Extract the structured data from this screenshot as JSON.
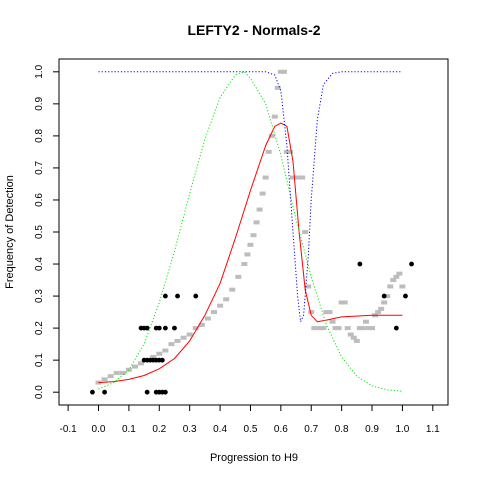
{
  "chart_data": {
    "type": "scatter",
    "title": "LEFTY2 - Normals-2",
    "xlabel": "Progression to H9",
    "ylabel": "Frequency of Detection",
    "xlim": [
      -0.13,
      1.15
    ],
    "ylim": [
      -0.04,
      1.04
    ],
    "xticks": [
      "-0.1",
      "0.0",
      "0.1",
      "0.2",
      "0.3",
      "0.4",
      "0.5",
      "0.6",
      "0.7",
      "0.8",
      "0.9",
      "1.0",
      "1.1"
    ],
    "yticks": [
      "0.0",
      "0.1",
      "0.2",
      "0.3",
      "0.4",
      "0.5",
      "0.6",
      "0.7",
      "0.8",
      "0.9",
      "1.0"
    ],
    "grid": false,
    "legend": "none",
    "colors": {
      "black_points": "#000000",
      "gray_points": "#bdbdbd",
      "red_curve": "#ff0000",
      "green_curve": "#00ee00",
      "blue_curve": "#0000ff"
    },
    "series": [
      {
        "kind": "points",
        "color": "#000000",
        "points": [
          [
            -0.02,
            0.0
          ],
          [
            0.02,
            0.0
          ],
          [
            0.14,
            0.2
          ],
          [
            0.15,
            0.2
          ],
          [
            0.16,
            0.2
          ],
          [
            0.15,
            0.1
          ],
          [
            0.16,
            0.1
          ],
          [
            0.17,
            0.1
          ],
          [
            0.18,
            0.1
          ],
          [
            0.19,
            0.1
          ],
          [
            0.2,
            0.1
          ],
          [
            0.21,
            0.1
          ],
          [
            0.16,
            0.0
          ],
          [
            0.19,
            0.0
          ],
          [
            0.2,
            0.0
          ],
          [
            0.21,
            0.0
          ],
          [
            0.22,
            0.0
          ],
          [
            0.19,
            0.2
          ],
          [
            0.2,
            0.2
          ],
          [
            0.22,
            0.2
          ],
          [
            0.25,
            0.2
          ],
          [
            0.22,
            0.3
          ],
          [
            0.26,
            0.3
          ],
          [
            0.32,
            0.3
          ],
          [
            0.86,
            0.4
          ],
          [
            0.94,
            0.3
          ],
          [
            0.98,
            0.2
          ],
          [
            1.01,
            0.3
          ],
          [
            1.03,
            0.4
          ]
        ]
      },
      {
        "kind": "points",
        "color": "#bdbdbd",
        "points": [
          [
            0.0,
            0.03
          ],
          [
            0.02,
            0.04
          ],
          [
            0.04,
            0.05
          ],
          [
            0.06,
            0.06
          ],
          [
            0.08,
            0.06
          ],
          [
            0.1,
            0.07
          ],
          [
            0.12,
            0.08
          ],
          [
            0.14,
            0.09
          ],
          [
            0.16,
            0.1
          ],
          [
            0.18,
            0.11
          ],
          [
            0.2,
            0.12
          ],
          [
            0.22,
            0.13
          ],
          [
            0.24,
            0.15
          ],
          [
            0.26,
            0.16
          ],
          [
            0.28,
            0.17
          ],
          [
            0.3,
            0.18
          ],
          [
            0.32,
            0.2
          ],
          [
            0.34,
            0.21
          ],
          [
            0.36,
            0.23
          ],
          [
            0.38,
            0.25
          ],
          [
            0.4,
            0.27
          ],
          [
            0.42,
            0.29
          ],
          [
            0.44,
            0.32
          ],
          [
            0.46,
            0.36
          ],
          [
            0.48,
            0.4
          ],
          [
            0.49,
            0.43
          ],
          [
            0.5,
            0.46
          ],
          [
            0.51,
            0.49
          ],
          [
            0.52,
            0.53
          ],
          [
            0.53,
            0.57
          ],
          [
            0.54,
            0.62
          ],
          [
            0.55,
            0.67
          ],
          [
            0.56,
            0.75
          ],
          [
            0.57,
            0.8
          ],
          [
            0.58,
            0.86
          ],
          [
            0.59,
            0.95
          ],
          [
            0.6,
            1.0
          ],
          [
            0.61,
            1.0
          ],
          [
            0.62,
            0.75
          ],
          [
            0.63,
            0.75
          ],
          [
            0.64,
            0.67
          ],
          [
            0.65,
            0.67
          ],
          [
            0.66,
            0.67
          ],
          [
            0.67,
            0.67
          ],
          [
            0.68,
            0.5
          ],
          [
            0.69,
            0.33
          ],
          [
            0.7,
            0.25
          ],
          [
            0.71,
            0.2
          ],
          [
            0.72,
            0.2
          ],
          [
            0.73,
            0.2
          ],
          [
            0.74,
            0.2
          ],
          [
            0.75,
            0.25
          ],
          [
            0.76,
            0.25
          ],
          [
            0.77,
            0.22
          ],
          [
            0.78,
            0.2
          ],
          [
            0.79,
            0.2
          ],
          [
            0.8,
            0.28
          ],
          [
            0.81,
            0.28
          ],
          [
            0.82,
            0.2
          ],
          [
            0.83,
            0.18
          ],
          [
            0.84,
            0.17
          ],
          [
            0.85,
            0.16
          ],
          [
            0.86,
            0.2
          ],
          [
            0.87,
            0.2
          ],
          [
            0.88,
            0.22
          ],
          [
            0.89,
            0.2
          ],
          [
            0.9,
            0.2
          ],
          [
            0.91,
            0.24
          ],
          [
            0.92,
            0.25
          ],
          [
            0.93,
            0.26
          ],
          [
            0.94,
            0.28
          ],
          [
            0.95,
            0.3
          ],
          [
            0.96,
            0.33
          ],
          [
            0.97,
            0.35
          ],
          [
            0.98,
            0.36
          ],
          [
            0.99,
            0.37
          ],
          [
            1.0,
            0.33
          ]
        ]
      },
      {
        "kind": "line",
        "color": "#ff0000",
        "dash": "solid",
        "points": [
          [
            0.0,
            0.03
          ],
          [
            0.05,
            0.033
          ],
          [
            0.1,
            0.04
          ],
          [
            0.15,
            0.052
          ],
          [
            0.2,
            0.073
          ],
          [
            0.25,
            0.105
          ],
          [
            0.3,
            0.16
          ],
          [
            0.35,
            0.24
          ],
          [
            0.4,
            0.34
          ],
          [
            0.45,
            0.48
          ],
          [
            0.5,
            0.63
          ],
          [
            0.55,
            0.77
          ],
          [
            0.58,
            0.83
          ],
          [
            0.6,
            0.84
          ],
          [
            0.62,
            0.83
          ],
          [
            0.64,
            0.72
          ],
          [
            0.66,
            0.5
          ],
          [
            0.68,
            0.32
          ],
          [
            0.7,
            0.24
          ],
          [
            0.72,
            0.22
          ],
          [
            0.75,
            0.225
          ],
          [
            0.8,
            0.235
          ],
          [
            0.9,
            0.24
          ],
          [
            1.0,
            0.24
          ]
        ]
      },
      {
        "kind": "line",
        "color": "#00ee00",
        "dash": "dotted",
        "points": [
          [
            0.0,
            0.01
          ],
          [
            0.05,
            0.03
          ],
          [
            0.1,
            0.07
          ],
          [
            0.15,
            0.15
          ],
          [
            0.2,
            0.28
          ],
          [
            0.25,
            0.44
          ],
          [
            0.3,
            0.62
          ],
          [
            0.35,
            0.79
          ],
          [
            0.4,
            0.92
          ],
          [
            0.45,
            0.99
          ],
          [
            0.48,
            1.0
          ],
          [
            0.5,
            0.98
          ],
          [
            0.55,
            0.9
          ],
          [
            0.6,
            0.74
          ],
          [
            0.65,
            0.54
          ],
          [
            0.7,
            0.36
          ],
          [
            0.75,
            0.21
          ],
          [
            0.8,
            0.11
          ],
          [
            0.85,
            0.05
          ],
          [
            0.9,
            0.02
          ],
          [
            0.95,
            0.007
          ],
          [
            1.0,
            0.003
          ]
        ]
      },
      {
        "kind": "line",
        "color": "#0000ff",
        "dash": "dotted",
        "points": [
          [
            0.0,
            1.0
          ],
          [
            0.5,
            1.0
          ],
          [
            0.55,
            1.0
          ],
          [
            0.58,
            0.99
          ],
          [
            0.6,
            0.94
          ],
          [
            0.62,
            0.77
          ],
          [
            0.64,
            0.5
          ],
          [
            0.655,
            0.3
          ],
          [
            0.665,
            0.22
          ],
          [
            0.675,
            0.24
          ],
          [
            0.69,
            0.42
          ],
          [
            0.7,
            0.6
          ],
          [
            0.72,
            0.85
          ],
          [
            0.74,
            0.96
          ],
          [
            0.77,
            0.995
          ],
          [
            0.8,
            1.0
          ],
          [
            1.0,
            1.0
          ]
        ]
      }
    ]
  }
}
